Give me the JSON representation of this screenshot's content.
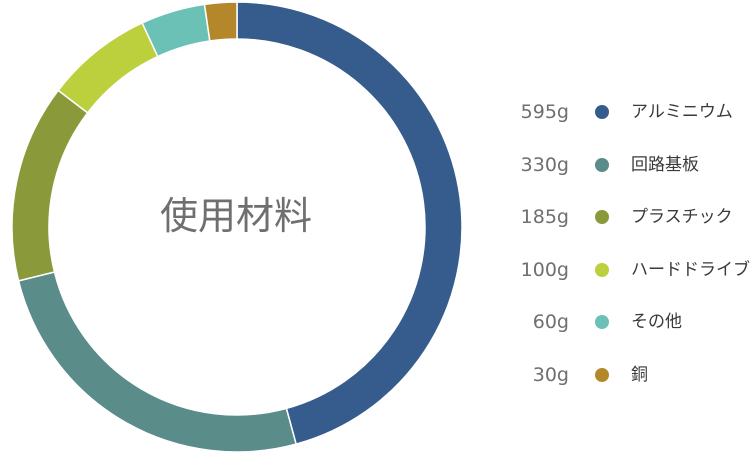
{
  "chart_data": {
    "type": "pie",
    "variant": "donut",
    "center_label": "使用材料",
    "unit": "g",
    "categories": [
      "アルミニウム",
      "回路基板",
      "プラスチック",
      "ハードドライブ",
      "その他",
      "銅"
    ],
    "values": [
      595,
      330,
      185,
      100,
      60,
      30
    ],
    "value_labels": [
      "595g",
      "330g",
      "185g",
      "100g",
      "60g",
      "30g"
    ],
    "colors": [
      "#365c8d",
      "#5a8c8a",
      "#8a9a3a",
      "#bccf3d",
      "#6cc1b7",
      "#b4882a"
    ],
    "legend_position": "right"
  }
}
